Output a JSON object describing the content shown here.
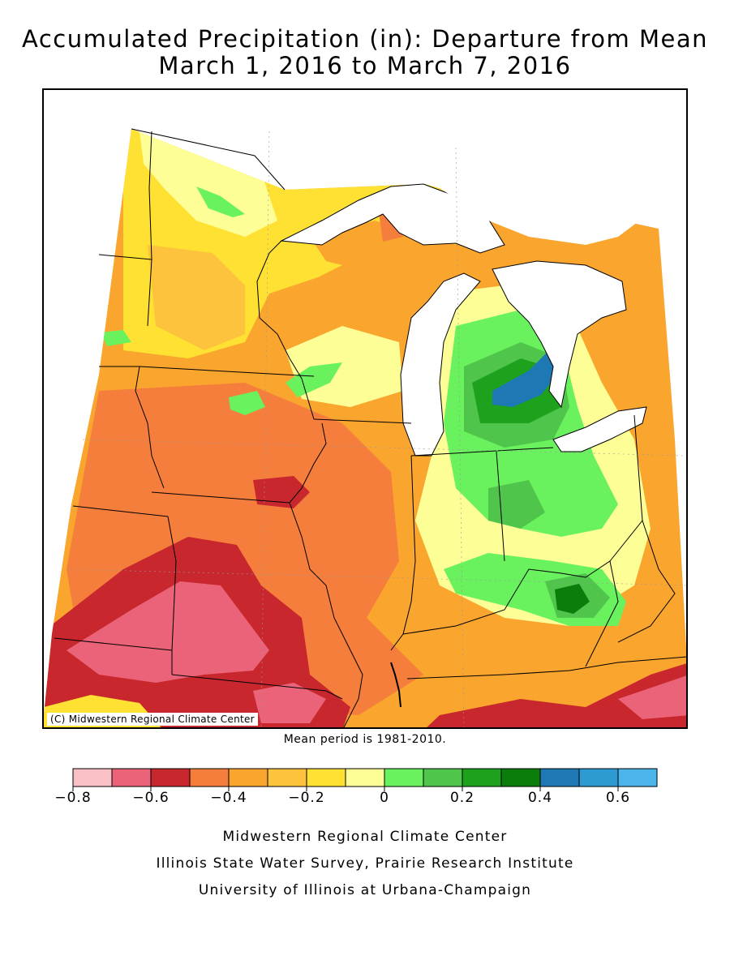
{
  "title": {
    "line1": "Accumulated Precipitation (in): Departure from Mean",
    "line2": "March 1, 2016 to March 7, 2016"
  },
  "map": {
    "copyright": "(C) Midwestern Regional Climate Center",
    "region_colors": {
      "lt_-0.7": "#f9c0c6",
      "-0.7_-0.6": "#ea6378",
      "-0.6_-0.5": "#c8282d",
      "-0.5_-0.4": "#f57e3c",
      "-0.4_-0.3": "#faa52d",
      "-0.3_-0.2": "#fdc33c",
      "-0.2_-0.1": "#fee132",
      "-0.1_0": "#fefe96",
      "0_0.1": "#6af25e",
      "0.1_0.2": "#4fc54b",
      "0.2_0.3": "#1ea21e",
      "0.3_0.4": "#0a7d0a",
      "0.4_0.5": "#1e78b4",
      "0.5_0.6": "#2d9bd2",
      "gt_0.6": "#4bb4eb"
    },
    "lake_color": "#ffffff"
  },
  "mean_period": "Mean period is 1981-2010.",
  "legend": {
    "colors": [
      "#f9c0c6",
      "#ea6378",
      "#c8282d",
      "#f57e3c",
      "#faa52d",
      "#fdc33c",
      "#fee132",
      "#fefe96",
      "#6af25e",
      "#4fc54b",
      "#1ea21e",
      "#0a7d0a",
      "#1e78b4",
      "#2d9bd2",
      "#4bb4eb"
    ],
    "ticks": [
      "−0.8",
      "−0.6",
      "−0.4",
      "−0.2",
      "0",
      "0.2",
      "0.4",
      "0.6"
    ]
  },
  "credits": {
    "line1": "Midwestern Regional Climate Center",
    "line2": "Illinois State Water Survey, Prairie Research Institute",
    "line3": "University of Illinois at Urbana-Champaign"
  }
}
